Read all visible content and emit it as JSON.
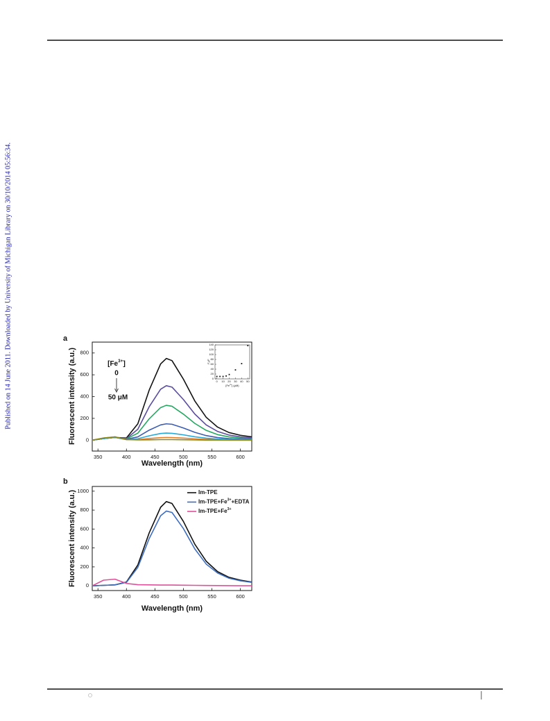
{
  "side_note": "Published on 14 June 2011. Downloaded by University of Michigan Library on 30/10/2014 05:56:34.",
  "chart_data": [
    {
      "type": "line",
      "panel_label": "a",
      "xlabel": "Wavelength (nm)",
      "ylabel": "Fluorescent intensity (a.u.)",
      "x": [
        340,
        360,
        380,
        400,
        420,
        440,
        460,
        470,
        480,
        500,
        520,
        540,
        560,
        580,
        600,
        620
      ],
      "xlim": [
        340,
        620
      ],
      "xticks": [
        350,
        400,
        450,
        500,
        550,
        600
      ],
      "ylim": [
        -100,
        900
      ],
      "yticks": [
        0,
        200,
        400,
        600,
        800
      ],
      "series": [
        {
          "color": "#111111",
          "values": [
            0,
            15,
            25,
            20,
            150,
            460,
            700,
            750,
            730,
            560,
            360,
            210,
            120,
            70,
            45,
            30
          ]
        },
        {
          "color": "#5b4c9e",
          "values": [
            0,
            15,
            25,
            15,
            100,
            307,
            467,
            500,
            487,
            373,
            240,
            140,
            80,
            47,
            30,
            20
          ]
        },
        {
          "color": "#25a862",
          "values": [
            0,
            15,
            25,
            12,
            64,
            196,
            299,
            320,
            311,
            239,
            154,
            90,
            51,
            30,
            19,
            13
          ]
        },
        {
          "color": "#3b5cb0",
          "values": [
            0,
            15,
            25,
            8,
            30,
            92,
            140,
            150,
            146,
            112,
            72,
            42,
            24,
            14,
            9,
            6
          ]
        },
        {
          "color": "#27a9d8",
          "values": [
            0,
            15,
            25,
            5,
            13,
            40,
            61,
            65,
            63,
            49,
            31,
            18,
            10,
            6,
            4,
            3
          ]
        },
        {
          "color": "#e0802a",
          "values": [
            0,
            20,
            30,
            5,
            5,
            15,
            23,
            25,
            24,
            19,
            12,
            7,
            4,
            2,
            2,
            1
          ]
        },
        {
          "color": "#8a8a1c",
          "values": [
            0,
            20,
            30,
            5,
            2,
            3,
            5,
            5,
            5,
            4,
            2,
            1,
            1,
            0,
            0,
            0
          ]
        }
      ],
      "annotation": {
        "start_label": [
          "[Fe",
          "3+",
          "]"
        ],
        "from": "0",
        "to": "50 μM"
      },
      "inset": {
        "type": "scatter",
        "xlabel": [
          "[Fe",
          "3+",
          "] (μM)"
        ],
        "ylabel": [
          "F",
          "0",
          "/F"
        ],
        "x": [
          0,
          5,
          10,
          15,
          20,
          30,
          40,
          50
        ],
        "values": [
          10,
          10,
          10,
          12,
          18,
          37,
          63,
          137
        ],
        "xlim": [
          -3,
          53
        ],
        "xticks": [
          0,
          10,
          20,
          30,
          40,
          50
        ],
        "ylim": [
          0,
          140
        ],
        "yticks": [
          0,
          20,
          40,
          60,
          80,
          100,
          120,
          140
        ]
      }
    },
    {
      "type": "line",
      "panel_label": "b",
      "xlabel": "Wavelength (nm)",
      "ylabel": "Fluorescent intensity (a.u.)",
      "x": [
        340,
        360,
        380,
        400,
        420,
        440,
        460,
        470,
        480,
        500,
        520,
        540,
        560,
        580,
        600,
        620
      ],
      "xlim": [
        340,
        620
      ],
      "xticks": [
        350,
        400,
        450,
        500,
        550,
        600
      ],
      "ylim": [
        -50,
        1050
      ],
      "yticks": [
        0,
        200,
        400,
        600,
        800,
        1000
      ],
      "series": [
        {
          "name": [
            "Im-TPE"
          ],
          "color": "#111111",
          "values": [
            0,
            5,
            10,
            40,
            220,
            560,
            830,
            890,
            870,
            680,
            440,
            260,
            150,
            90,
            60,
            40
          ]
        },
        {
          "name": [
            "Im-TPE+Fe",
            "3+",
            "+EDTA"
          ],
          "color": "#3d6dc0",
          "values": [
            0,
            5,
            10,
            36,
            195,
            500,
            740,
            790,
            775,
            605,
            390,
            230,
            135,
            80,
            53,
            36
          ]
        },
        {
          "name": [
            "Im-TPE+Fe",
            "3+"
          ],
          "color": "#e0509a",
          "values": [
            0,
            60,
            70,
            25,
            12,
            10,
            8,
            8,
            8,
            6,
            5,
            4,
            3,
            2,
            1,
            1
          ]
        }
      ]
    }
  ]
}
